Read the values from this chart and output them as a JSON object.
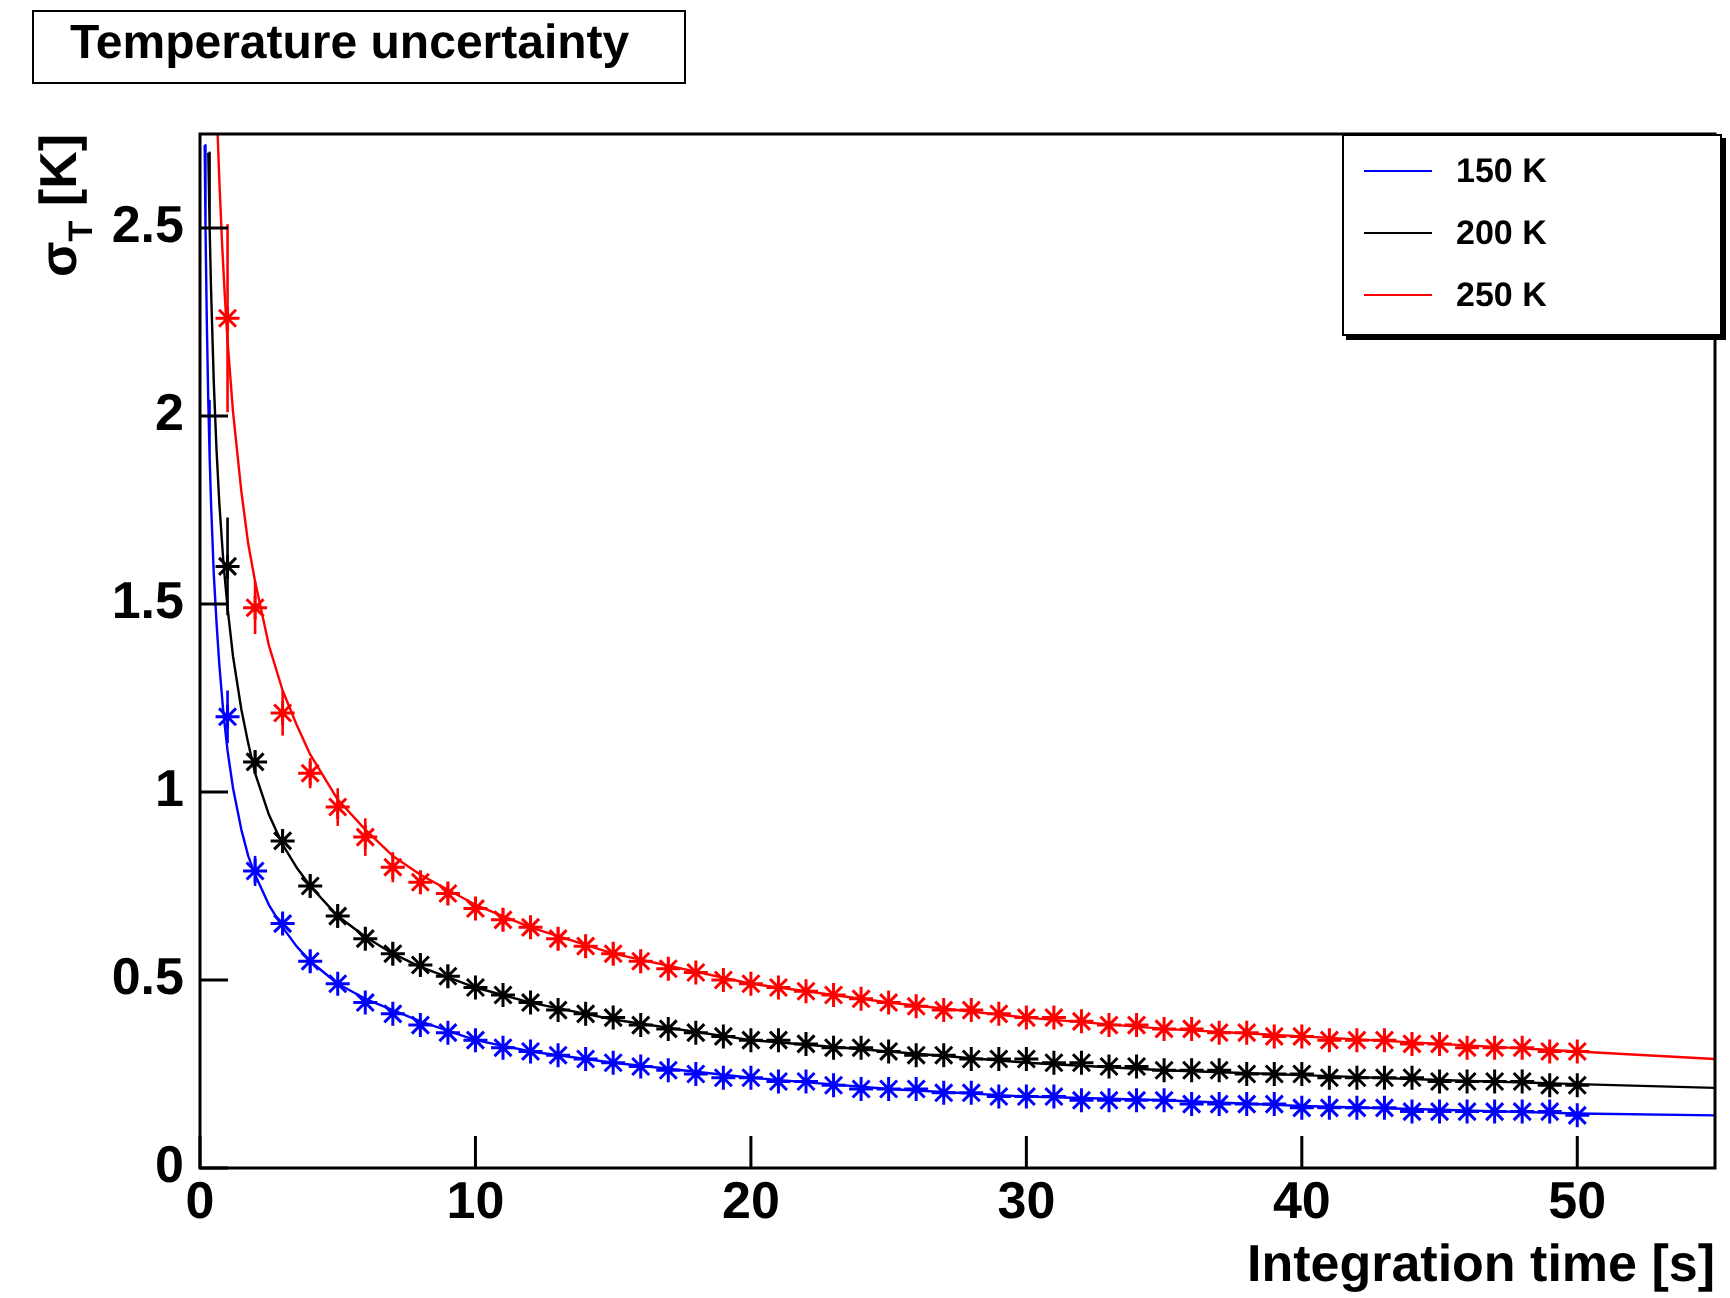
{
  "chart_data": {
    "type": "scatter",
    "title": "Temperature uncertainty",
    "xlabel": "Integration time [s]",
    "ylabel": "σ$_{T}$ [K]",
    "xlim": [
      0,
      55
    ],
    "xticks": [
      0,
      10,
      20,
      30,
      40,
      50
    ],
    "ylim": [
      0,
      2.75
    ],
    "yticks": [
      0,
      0.5,
      1,
      1.5,
      2,
      2.5
    ],
    "legend": "top right",
    "marker": "cross",
    "x": [
      1,
      2,
      3,
      4,
      5,
      6,
      7,
      8,
      9,
      10,
      11,
      12,
      13,
      14,
      15,
      16,
      17,
      18,
      19,
      20,
      21,
      22,
      23,
      24,
      25,
      26,
      27,
      28,
      29,
      30,
      31,
      32,
      33,
      34,
      35,
      36,
      37,
      38,
      39,
      40,
      41,
      42,
      43,
      44,
      45,
      46,
      47,
      48,
      49,
      50
    ],
    "series": [
      {
        "color": "#0000ff",
        "values": [
          1.2,
          0.79,
          0.65,
          0.55,
          0.49,
          0.44,
          0.41,
          0.38,
          0.36,
          0.34,
          0.32,
          0.31,
          0.3,
          0.29,
          0.28,
          0.27,
          0.26,
          0.25,
          0.24,
          0.24,
          0.23,
          0.23,
          0.22,
          0.21,
          0.21,
          0.21,
          0.2,
          0.2,
          0.19,
          0.19,
          0.19,
          0.18,
          0.18,
          0.18,
          0.18,
          0.17,
          0.17,
          0.17,
          0.17,
          0.16,
          0.16,
          0.16,
          0.16,
          0.15,
          0.15,
          0.15,
          0.15,
          0.15,
          0.15,
          0.14
        ],
        "errors": [
          0.07,
          0.04,
          0.03,
          0.03,
          null,
          null,
          null,
          null,
          null,
          null,
          null,
          null,
          null,
          null,
          null,
          null,
          null,
          null,
          null,
          null,
          null,
          null,
          null,
          null,
          null,
          null,
          null,
          null,
          null,
          null,
          null,
          null,
          null,
          null,
          null,
          null,
          null,
          null,
          null,
          null,
          null,
          null,
          null,
          null,
          null,
          null,
          null,
          null,
          null,
          null
        ]
      },
      {
        "color": "#000000",
        "values": [
          1.6,
          1.08,
          0.87,
          0.75,
          0.67,
          0.61,
          0.57,
          0.54,
          0.51,
          0.48,
          0.46,
          0.44,
          0.42,
          0.41,
          0.4,
          0.38,
          0.37,
          0.36,
          0.35,
          0.34,
          0.34,
          0.33,
          0.32,
          0.32,
          0.31,
          0.3,
          0.3,
          0.29,
          0.29,
          0.29,
          0.28,
          0.28,
          0.27,
          0.27,
          0.26,
          0.26,
          0.26,
          0.25,
          0.25,
          0.25,
          0.24,
          0.24,
          0.24,
          0.24,
          0.23,
          0.23,
          0.23,
          0.23,
          0.22,
          0.22
        ],
        "errors": [
          0.13,
          0.03,
          0.03,
          0.03,
          0.03,
          0.03,
          0.03,
          0.03,
          0.03,
          null,
          null,
          null,
          null,
          null,
          null,
          null,
          null,
          null,
          null,
          null,
          null,
          null,
          null,
          null,
          null,
          null,
          null,
          null,
          null,
          null,
          null,
          null,
          null,
          null,
          null,
          null,
          null,
          null,
          null,
          null,
          null,
          null,
          null,
          null,
          null,
          null,
          null,
          null,
          null,
          null
        ]
      },
      {
        "color": "#ff0000",
        "values": [
          2.26,
          1.49,
          1.21,
          1.05,
          0.96,
          0.88,
          0.8,
          0.76,
          0.73,
          0.69,
          0.66,
          0.64,
          0.61,
          0.59,
          0.57,
          0.55,
          0.53,
          0.52,
          0.5,
          0.49,
          0.48,
          0.47,
          0.46,
          0.45,
          0.44,
          0.43,
          0.42,
          0.42,
          0.41,
          0.4,
          0.4,
          0.39,
          0.38,
          0.38,
          0.37,
          0.37,
          0.36,
          0.36,
          0.35,
          0.35,
          0.34,
          0.34,
          0.34,
          0.33,
          0.33,
          0.32,
          0.32,
          0.32,
          0.31,
          0.31
        ],
        "errors": [
          0.25,
          0.07,
          0.06,
          0.04,
          0.05,
          0.05,
          0.04,
          0.03,
          0.03,
          0.03,
          0.03,
          0.03,
          0.03,
          0.03,
          0.03,
          0.03,
          0.03,
          null,
          null,
          null,
          null,
          null,
          null,
          null,
          null,
          null,
          null,
          null,
          null,
          null,
          null,
          null,
          null,
          null,
          null,
          null,
          null,
          null,
          null,
          null,
          null,
          null,
          null,
          null,
          null,
          null,
          null,
          null,
          null,
          null
        ]
      },
      {
        "type": "line",
        "name": "150 K",
        "color": "#0000ff",
        "marker": "none",
        "x": [
          0.17,
          0.2,
          0.25,
          0.3,
          0.35,
          0.4,
          0.5,
          0.6,
          0.7,
          0.85,
          1,
          1.2,
          1.5,
          1.75,
          2,
          2.5,
          3,
          3.5,
          4,
          5,
          6,
          7,
          8,
          10,
          12,
          15,
          20,
          25,
          30,
          35,
          40,
          45,
          50,
          55
        ],
        "values": [
          2.72,
          2.5,
          2.24,
          2.04,
          1.89,
          1.77,
          1.58,
          1.45,
          1.34,
          1.21,
          1.11,
          1.01,
          0.9,
          0.83,
          0.78,
          0.7,
          0.64,
          0.59,
          0.55,
          0.49,
          0.45,
          0.42,
          0.39,
          0.34,
          0.31,
          0.28,
          0.24,
          0.21,
          0.19,
          0.18,
          0.165,
          0.155,
          0.145,
          0.14
        ]
      },
      {
        "type": "line",
        "name": "200 K",
        "color": "#000000",
        "marker": "none",
        "x": [
          0.3,
          0.35,
          0.4,
          0.5,
          0.6,
          0.7,
          0.85,
          1,
          1.2,
          1.5,
          1.75,
          2,
          2.5,
          3,
          3.5,
          4,
          5,
          6,
          7,
          8,
          10,
          12,
          15,
          20,
          25,
          30,
          35,
          40,
          45,
          50,
          55
        ],
        "values": [
          2.7,
          2.5,
          2.34,
          2.09,
          1.91,
          1.77,
          1.61,
          1.49,
          1.36,
          1.22,
          1.13,
          1.05,
          0.94,
          0.86,
          0.8,
          0.75,
          0.67,
          0.615,
          0.57,
          0.535,
          0.48,
          0.44,
          0.395,
          0.34,
          0.31,
          0.28,
          0.26,
          0.247,
          0.234,
          0.223,
          0.213
        ]
      },
      {
        "type": "line",
        "name": "250 K",
        "color": "#ff0000",
        "marker": "none",
        "x": [
          0.64,
          0.7,
          0.8,
          0.9,
          1,
          1.2,
          1.5,
          1.75,
          2,
          2.5,
          3,
          3.5,
          4,
          5,
          6,
          7,
          8,
          10,
          12,
          15,
          20,
          25,
          30,
          35,
          40,
          45,
          50,
          55
        ],
        "values": [
          2.75,
          2.63,
          2.46,
          2.32,
          2.2,
          2.01,
          1.8,
          1.66,
          1.56,
          1.39,
          1.27,
          1.18,
          1.1,
          0.98,
          0.9,
          0.83,
          0.78,
          0.7,
          0.64,
          0.57,
          0.49,
          0.44,
          0.4,
          0.37,
          0.35,
          0.33,
          0.31,
          0.29
        ]
      }
    ]
  }
}
